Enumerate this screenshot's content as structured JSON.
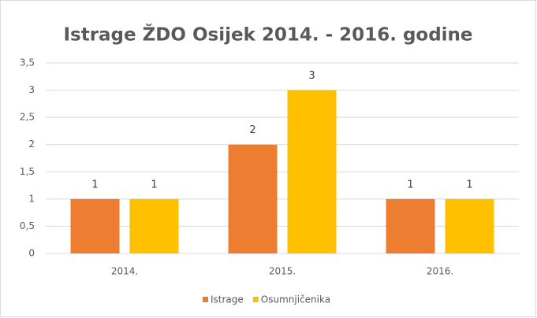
{
  "chart_data": {
    "type": "bar",
    "title": "Istrage ŽDO Osijek 2014. - 2016. godine",
    "categories": [
      "2014.",
      "2015.",
      "2016."
    ],
    "series": [
      {
        "name": "Istrage",
        "color": "#ed7d31",
        "values": [
          1,
          2,
          1
        ]
      },
      {
        "name": "Osumnjičenika",
        "color": "#ffc000",
        "values": [
          1,
          3,
          1
        ]
      }
    ],
    "ylim": [
      0,
      3.5
    ],
    "yticks": [
      0,
      {
        "value": 0.5,
        "label": "0,5"
      },
      1,
      {
        "value": 1.5,
        "label": "1,5"
      },
      2,
      {
        "value": 2.5,
        "label": "2,5"
      },
      3,
      {
        "value": 3.5,
        "label": "3,5"
      }
    ],
    "grid": true,
    "legend": "bottom"
  }
}
